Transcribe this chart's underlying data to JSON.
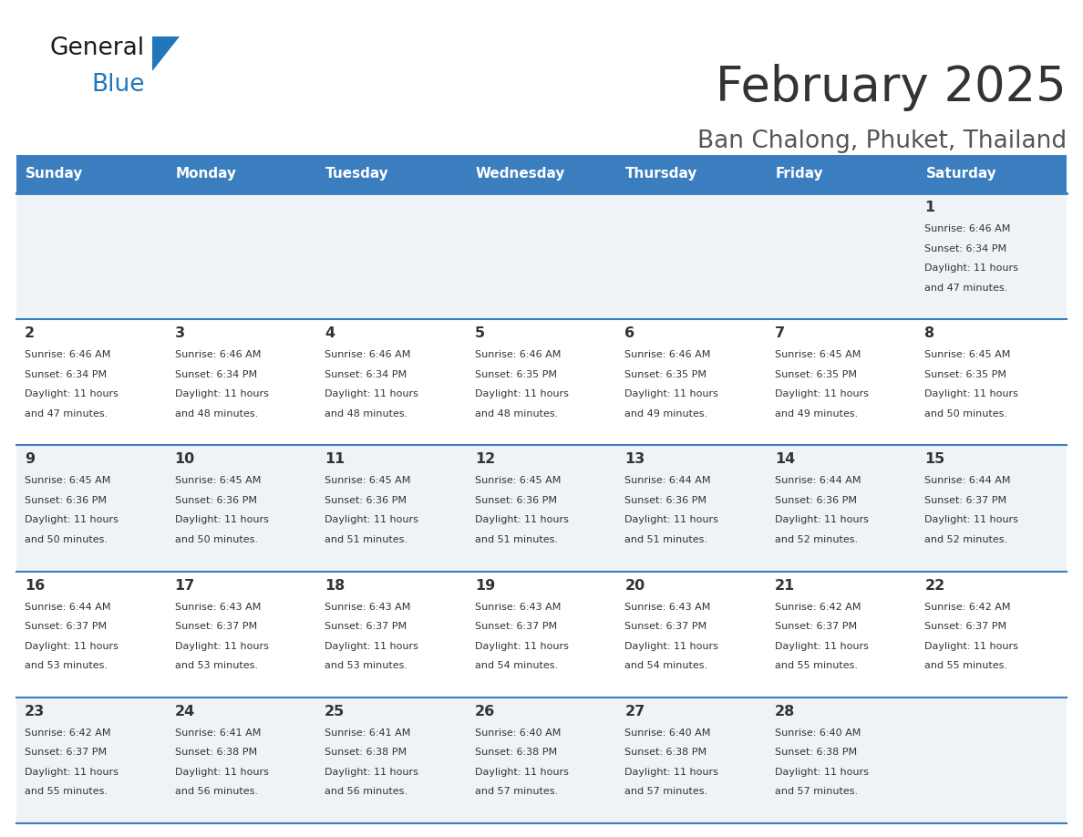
{
  "title": "February 2025",
  "subtitle": "Ban Chalong, Phuket, Thailand",
  "days_of_week": [
    "Sunday",
    "Monday",
    "Tuesday",
    "Wednesday",
    "Thursday",
    "Friday",
    "Saturday"
  ],
  "header_bg": "#3a7ebf",
  "header_text": "#ffffff",
  "row_bg": [
    "#eff3f8",
    "#ffffff",
    "#eff3f8",
    "#ffffff",
    "#eff3f8"
  ],
  "cell_text_color": "#333333",
  "title_color": "#333333",
  "subtitle_color": "#555555",
  "divider_color": "#3a7ebf",
  "logo_general_color": "#1a1a1a",
  "logo_blue_color": "#2277bb",
  "logo_triangle_color": "#2277bb",
  "calendar": [
    [
      null,
      null,
      null,
      null,
      null,
      null,
      {
        "day": "1",
        "sunrise": "6:46 AM",
        "sunset": "6:34 PM",
        "daylight_h": "11 hours",
        "daylight_m": "47 minutes."
      }
    ],
    [
      {
        "day": "2",
        "sunrise": "6:46 AM",
        "sunset": "6:34 PM",
        "daylight_h": "11 hours",
        "daylight_m": "47 minutes."
      },
      {
        "day": "3",
        "sunrise": "6:46 AM",
        "sunset": "6:34 PM",
        "daylight_h": "11 hours",
        "daylight_m": "48 minutes."
      },
      {
        "day": "4",
        "sunrise": "6:46 AM",
        "sunset": "6:34 PM",
        "daylight_h": "11 hours",
        "daylight_m": "48 minutes."
      },
      {
        "day": "5",
        "sunrise": "6:46 AM",
        "sunset": "6:35 PM",
        "daylight_h": "11 hours",
        "daylight_m": "48 minutes."
      },
      {
        "day": "6",
        "sunrise": "6:46 AM",
        "sunset": "6:35 PM",
        "daylight_h": "11 hours",
        "daylight_m": "49 minutes."
      },
      {
        "day": "7",
        "sunrise": "6:45 AM",
        "sunset": "6:35 PM",
        "daylight_h": "11 hours",
        "daylight_m": "49 minutes."
      },
      {
        "day": "8",
        "sunrise": "6:45 AM",
        "sunset": "6:35 PM",
        "daylight_h": "11 hours",
        "daylight_m": "50 minutes."
      }
    ],
    [
      {
        "day": "9",
        "sunrise": "6:45 AM",
        "sunset": "6:36 PM",
        "daylight_h": "11 hours",
        "daylight_m": "50 minutes."
      },
      {
        "day": "10",
        "sunrise": "6:45 AM",
        "sunset": "6:36 PM",
        "daylight_h": "11 hours",
        "daylight_m": "50 minutes."
      },
      {
        "day": "11",
        "sunrise": "6:45 AM",
        "sunset": "6:36 PM",
        "daylight_h": "11 hours",
        "daylight_m": "51 minutes."
      },
      {
        "day": "12",
        "sunrise": "6:45 AM",
        "sunset": "6:36 PM",
        "daylight_h": "11 hours",
        "daylight_m": "51 minutes."
      },
      {
        "day": "13",
        "sunrise": "6:44 AM",
        "sunset": "6:36 PM",
        "daylight_h": "11 hours",
        "daylight_m": "51 minutes."
      },
      {
        "day": "14",
        "sunrise": "6:44 AM",
        "sunset": "6:36 PM",
        "daylight_h": "11 hours",
        "daylight_m": "52 minutes."
      },
      {
        "day": "15",
        "sunrise": "6:44 AM",
        "sunset": "6:37 PM",
        "daylight_h": "11 hours",
        "daylight_m": "52 minutes."
      }
    ],
    [
      {
        "day": "16",
        "sunrise": "6:44 AM",
        "sunset": "6:37 PM",
        "daylight_h": "11 hours",
        "daylight_m": "53 minutes."
      },
      {
        "day": "17",
        "sunrise": "6:43 AM",
        "sunset": "6:37 PM",
        "daylight_h": "11 hours",
        "daylight_m": "53 minutes."
      },
      {
        "day": "18",
        "sunrise": "6:43 AM",
        "sunset": "6:37 PM",
        "daylight_h": "11 hours",
        "daylight_m": "53 minutes."
      },
      {
        "day": "19",
        "sunrise": "6:43 AM",
        "sunset": "6:37 PM",
        "daylight_h": "11 hours",
        "daylight_m": "54 minutes."
      },
      {
        "day": "20",
        "sunrise": "6:43 AM",
        "sunset": "6:37 PM",
        "daylight_h": "11 hours",
        "daylight_m": "54 minutes."
      },
      {
        "day": "21",
        "sunrise": "6:42 AM",
        "sunset": "6:37 PM",
        "daylight_h": "11 hours",
        "daylight_m": "55 minutes."
      },
      {
        "day": "22",
        "sunrise": "6:42 AM",
        "sunset": "6:37 PM",
        "daylight_h": "11 hours",
        "daylight_m": "55 minutes."
      }
    ],
    [
      {
        "day": "23",
        "sunrise": "6:42 AM",
        "sunset": "6:37 PM",
        "daylight_h": "11 hours",
        "daylight_m": "55 minutes."
      },
      {
        "day": "24",
        "sunrise": "6:41 AM",
        "sunset": "6:38 PM",
        "daylight_h": "11 hours",
        "daylight_m": "56 minutes."
      },
      {
        "day": "25",
        "sunrise": "6:41 AM",
        "sunset": "6:38 PM",
        "daylight_h": "11 hours",
        "daylight_m": "56 minutes."
      },
      {
        "day": "26",
        "sunrise": "6:40 AM",
        "sunset": "6:38 PM",
        "daylight_h": "11 hours",
        "daylight_m": "57 minutes."
      },
      {
        "day": "27",
        "sunrise": "6:40 AM",
        "sunset": "6:38 PM",
        "daylight_h": "11 hours",
        "daylight_m": "57 minutes."
      },
      {
        "day": "28",
        "sunrise": "6:40 AM",
        "sunset": "6:38 PM",
        "daylight_h": "11 hours",
        "daylight_m": "57 minutes."
      },
      null
    ]
  ]
}
